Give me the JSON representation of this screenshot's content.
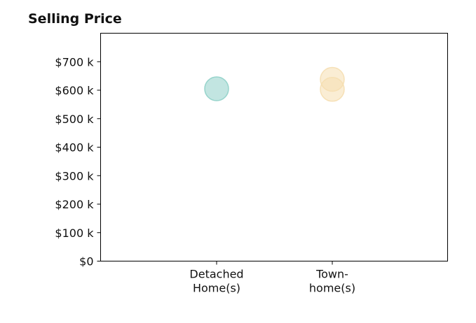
{
  "chart_data": {
    "type": "scatter",
    "title": "Selling Price",
    "xlabel": "",
    "ylabel": "",
    "categories": [
      "Detached\nHome(s)",
      "Town-\nhome(s)"
    ],
    "ylim": [
      0,
      800000
    ],
    "y_ticks": [
      {
        "value": 0,
        "label": "$0"
      },
      {
        "value": 100000,
        "label": "$100 k"
      },
      {
        "value": 200000,
        "label": "$200 k"
      },
      {
        "value": 300000,
        "label": "$300 k"
      },
      {
        "value": 400000,
        "label": "$400 k"
      },
      {
        "value": 500000,
        "label": "$500 k"
      },
      {
        "value": 600000,
        "label": "$600 k"
      },
      {
        "value": 700000,
        "label": "$700 k"
      }
    ],
    "points": [
      {
        "category": "Detached\nHome(s)",
        "y": 605000,
        "color": "#8fd0c8"
      },
      {
        "category": "Town-\nhome(s)",
        "y": 638000,
        "color": "#f5deb0"
      },
      {
        "category": "Town-\nhome(s)",
        "y": 603000,
        "color": "#f5deb0"
      }
    ],
    "grid": false,
    "legend": "none"
  }
}
